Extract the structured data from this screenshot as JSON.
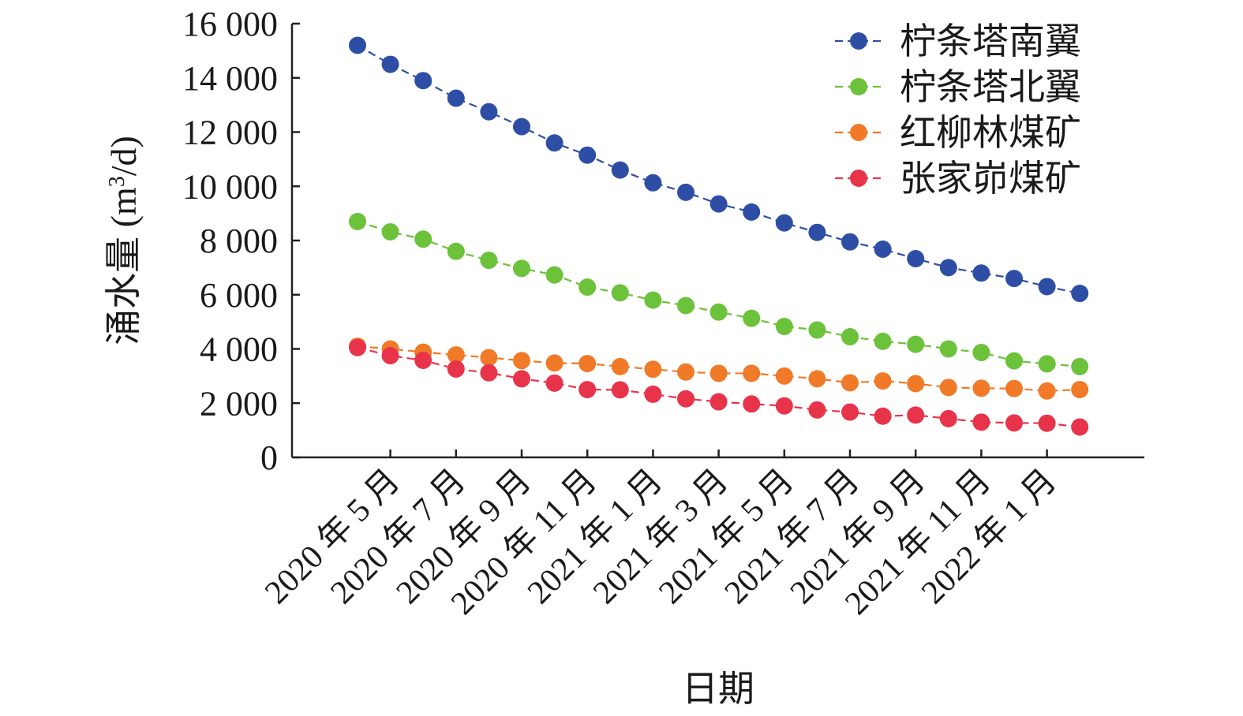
{
  "chart_data": {
    "type": "line",
    "xlabel": "日期",
    "ylabel_main": "涌水量 (m",
    "ylabel_sup": "3",
    "ylabel_tail": "/d)",
    "ylim": [
      0,
      16000
    ],
    "yticks": [
      0,
      2000,
      4000,
      6000,
      8000,
      10000,
      12000,
      14000,
      16000
    ],
    "ytick_labels": [
      "0",
      "2 000",
      "4 000",
      "6 000",
      "8 000",
      "10 000",
      "12 000",
      "14 000",
      "16 000"
    ],
    "xtick_labels": [
      "2020 年 5 月",
      "2020 年 7 月",
      "2020 年 9 月",
      "2020 年 11 月",
      "2021 年 1 月",
      "2021 年 3 月",
      "2021 年 5 月",
      "2021 年 7 月",
      "2021 年 9 月",
      "2021 年 11 月",
      "2022 年 1 月"
    ],
    "x": [
      "2020-04",
      "2020-05",
      "2020-06",
      "2020-07",
      "2020-08",
      "2020-09",
      "2020-10",
      "2020-11",
      "2020-12",
      "2021-01",
      "2021-02",
      "2021-03",
      "2021-04",
      "2021-05",
      "2021-06",
      "2021-07",
      "2021-08",
      "2021-09",
      "2021-10",
      "2021-11",
      "2021-12",
      "2022-01",
      "2022-02"
    ],
    "legend_position": "top-right",
    "grid": false,
    "series": [
      {
        "name": "柠条塔南翼",
        "color": "#2e4ea6",
        "values": [
          15200,
          14500,
          13900,
          13250,
          12750,
          12200,
          11600,
          11150,
          10600,
          10130,
          9780,
          9350,
          9050,
          8650,
          8300,
          7950,
          7680,
          7330,
          7000,
          6800,
          6600,
          6300,
          6050
        ]
      },
      {
        "name": "柠条塔北翼",
        "color": "#6cc23a",
        "values": [
          8700,
          8320,
          8050,
          7600,
          7270,
          6970,
          6730,
          6280,
          6070,
          5800,
          5600,
          5360,
          5130,
          4830,
          4700,
          4450,
          4280,
          4170,
          4000,
          3870,
          3560,
          3450,
          3350
        ]
      },
      {
        "name": "红柳林煤矿",
        "color": "#f07a28",
        "values": [
          4100,
          4000,
          3880,
          3780,
          3680,
          3570,
          3480,
          3460,
          3350,
          3250,
          3150,
          3100,
          3100,
          3000,
          2900,
          2750,
          2820,
          2720,
          2580,
          2550,
          2540,
          2450,
          2500
        ]
      },
      {
        "name": "张家峁煤矿",
        "color": "#e8344a",
        "values": [
          4050,
          3750,
          3580,
          3260,
          3120,
          2900,
          2740,
          2500,
          2490,
          2330,
          2160,
          2050,
          1970,
          1900,
          1750,
          1670,
          1520,
          1560,
          1430,
          1300,
          1270,
          1260,
          1120
        ]
      }
    ]
  }
}
